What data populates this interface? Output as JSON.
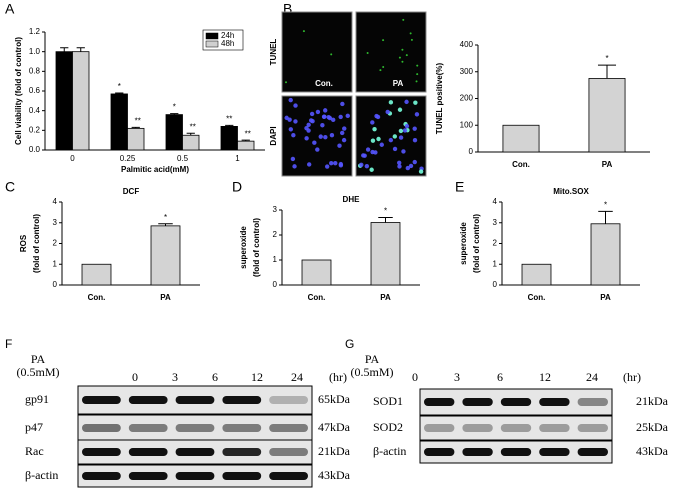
{
  "chart_data": [
    {
      "type": "bar",
      "panel": "A",
      "ylabel": [
        "Cell viability (fold of control)"
      ],
      "xlabel": "Palmitic acid(mM)",
      "categories": [
        "0",
        "0.25",
        "0.5",
        "1"
      ],
      "series": [
        {
          "name": "24h",
          "color": "#000000",
          "values": [
            1.0,
            0.57,
            0.36,
            0.24
          ],
          "errors": [
            0.04,
            0.01,
            0.01,
            0.01
          ],
          "significance": [
            null,
            "*",
            "*",
            "**"
          ]
        },
        {
          "name": "48h",
          "color": "#d0d0d0",
          "values": [
            1.0,
            0.22,
            0.15,
            0.09
          ],
          "errors": [
            0.04,
            0.01,
            0.02,
            0.01
          ],
          "significance": [
            null,
            "**",
            "**",
            "**"
          ]
        }
      ],
      "ylim": [
        0,
        1.2
      ],
      "yticks": [
        {
          "value": 0,
          "label": "0.0"
        },
        {
          "value": 0.2,
          "label": "0.2"
        },
        {
          "value": 0.4,
          "label": "0.4"
        },
        {
          "value": 0.6,
          "label": "0.6"
        },
        {
          "value": 0.8,
          "label": "0.8"
        },
        {
          "value": 1,
          "label": "1.0"
        },
        {
          "value": 1.2,
          "label": "1.2"
        }
      ],
      "legend": "top-right"
    },
    {
      "type": "bar",
      "panel": "B",
      "ylabel": [
        "TUNEL positive(%)"
      ],
      "categories": [
        "Con.",
        "PA"
      ],
      "values": [
        100,
        275
      ],
      "errors": [
        null,
        50
      ],
      "significance": [
        null,
        "*"
      ],
      "color": "#d3d3d3",
      "ylim": [
        0,
        400
      ],
      "yticks": [
        0,
        100,
        200,
        300,
        400
      ]
    },
    {
      "type": "bar",
      "panel": "C",
      "title": "DCF",
      "ylabel": [
        "ROS",
        "(fold of control)"
      ],
      "categories": [
        "Con.",
        "PA"
      ],
      "values": [
        1,
        2.85
      ],
      "errors": [
        null,
        0.1
      ],
      "significance": [
        null,
        "*"
      ],
      "color": "#d3d3d3",
      "ylim": [
        0,
        4
      ],
      "yticks": [
        0,
        1,
        2,
        3,
        4
      ]
    },
    {
      "type": "bar",
      "panel": "D",
      "title": "DHE",
      "ylabel": [
        "superoxide",
        "(fold of control)"
      ],
      "categories": [
        "Con.",
        "PA"
      ],
      "values": [
        1,
        2.5
      ],
      "errors": [
        null,
        0.2
      ],
      "significance": [
        null,
        "*"
      ],
      "color": "#d3d3d3",
      "ylim": [
        0,
        3
      ],
      "yticks": [
        0,
        1,
        2,
        3
      ]
    },
    {
      "type": "bar",
      "panel": "E",
      "title": "Mito.SOX",
      "ylabel": [
        "superoxide",
        "(fold of control)"
      ],
      "categories": [
        "Con.",
        "PA"
      ],
      "values": [
        1,
        2.95
      ],
      "errors": [
        null,
        0.6
      ],
      "significance": [
        null,
        "*"
      ],
      "color": "#d3d3d3",
      "ylim": [
        0,
        4
      ],
      "yticks": [
        0,
        1,
        2,
        3,
        4
      ]
    }
  ],
  "images": {
    "row_labels": [
      "TUNEL",
      "DAPI"
    ],
    "col_labels": [
      "Con.",
      "PA"
    ]
  },
  "blots": [
    {
      "panel": "F",
      "treatment": [
        "PA",
        "(0.5mM)"
      ],
      "lanes": [
        "0",
        "3",
        "6",
        "12",
        "24"
      ],
      "unit": "(hr)",
      "rows": [
        {
          "label": "gp91",
          "size": "65kDa"
        },
        {
          "label": "p47",
          "size": "47kDa"
        },
        {
          "label": "Rac",
          "size": "21kDa"
        },
        {
          "label": "β-actin",
          "size": "43kDa"
        }
      ]
    },
    {
      "panel": "G",
      "treatment": [
        "PA",
        "(0.5mM)"
      ],
      "lanes": [
        "0",
        "3",
        "6",
        "12",
        "24"
      ],
      "unit": "(hr)",
      "rows": [
        {
          "label": "SOD1",
          "size": "21kDa"
        },
        {
          "label": "SOD2",
          "size": "25kDa"
        },
        {
          "label": "β-actin",
          "size": "43kDa"
        }
      ]
    }
  ]
}
